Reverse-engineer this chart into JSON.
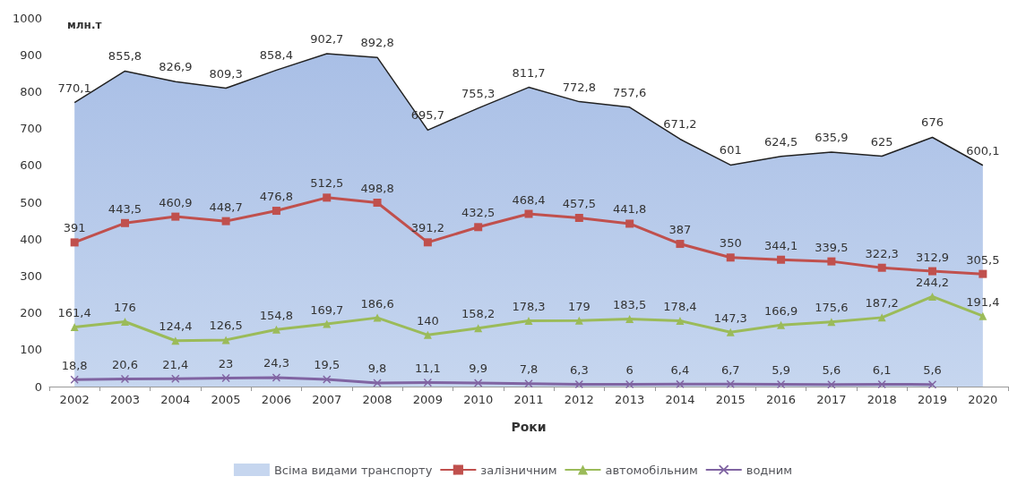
{
  "chart_data": {
    "type": "line",
    "ylabel": "млн.т",
    "xlabel": "Роки",
    "categories": [
      "2002",
      "2003",
      "2004",
      "2005",
      "2006",
      "2007",
      "2008",
      "2009",
      "2010",
      "2011",
      "2012",
      "2013",
      "2014",
      "2015",
      "2016",
      "2017",
      "2018",
      "2019",
      "2020"
    ],
    "ylim": [
      0,
      1000
    ],
    "yticks": [
      0,
      100,
      200,
      300,
      400,
      500,
      600,
      700,
      800,
      900,
      1000
    ],
    "grid": false,
    "legend": "bottom",
    "series": [
      {
        "name": "Всіма видами транспорту",
        "type": "area",
        "color": "#c6d6ef",
        "marker": "none",
        "values": [
          770.1,
          855.8,
          826.9,
          809.3,
          858.4,
          902.7,
          892.8,
          695.7,
          755.3,
          811.7,
          772.8,
          757.6,
          671.2,
          601,
          624.5,
          635.9,
          625,
          676,
          600.1
        ],
        "value_labels": [
          "770,1",
          "855,8",
          "826,9",
          "809,3",
          "858,4",
          "902,7",
          "892,8",
          "695,7",
          "755,3",
          "811,7",
          "772,8",
          "757,6",
          "671,2",
          "601",
          "624,5",
          "635,9",
          "625",
          "676",
          "600,1"
        ]
      },
      {
        "name": "залізничним",
        "color": "#c0504d",
        "marker": "square",
        "values": [
          391,
          443.5,
          460.9,
          448.7,
          476.8,
          512.5,
          498.8,
          391.2,
          432.5,
          468.4,
          457.5,
          441.8,
          387,
          350,
          344.1,
          339.5,
          322.3,
          312.9,
          305.5
        ],
        "value_labels": [
          "391",
          "443,5",
          "460,9",
          "448,7",
          "476,8",
          "512,5",
          "498,8",
          "391,2",
          "432,5",
          "468,4",
          "457,5",
          "441,8",
          "387",
          "350",
          "344,1",
          "339,5",
          "322,3",
          "312,9",
          "305,5"
        ]
      },
      {
        "name": "автомобільним",
        "color": "#9bbb59",
        "marker": "triangle",
        "values": [
          161.4,
          176,
          124.4,
          126.5,
          154.8,
          169.7,
          186.6,
          140,
          158.2,
          178.3,
          179,
          183.5,
          178.4,
          147.3,
          166.9,
          175.6,
          187.2,
          244.2,
          191.4
        ],
        "value_labels": [
          "161,4",
          "176",
          "124,4",
          "126,5",
          "154,8",
          "169,7",
          "186,6",
          "140",
          "158,2",
          "178,3",
          "179",
          "183,5",
          "178,4",
          "147,3",
          "166,9",
          "175,6",
          "187,2",
          "244,2",
          "191,4"
        ]
      },
      {
        "name": "водним",
        "color": "#8064a2",
        "marker": "cross",
        "values": [
          18.8,
          20.6,
          21.4,
          23,
          24.3,
          19.5,
          9.8,
          11.1,
          9.9,
          7.8,
          6.3,
          6,
          6.4,
          6.7,
          5.9,
          5.6,
          6.1,
          5.6,
          null
        ],
        "value_labels": [
          "18,8",
          "20,6",
          "21,4",
          "23",
          "24,3",
          "19,5",
          "9,8",
          "11,1",
          "9,9",
          "7,8",
          "6,3",
          "6",
          "6,4",
          "6,7",
          "5,9",
          "5,6",
          "6,1",
          "5,6",
          null
        ]
      }
    ]
  }
}
